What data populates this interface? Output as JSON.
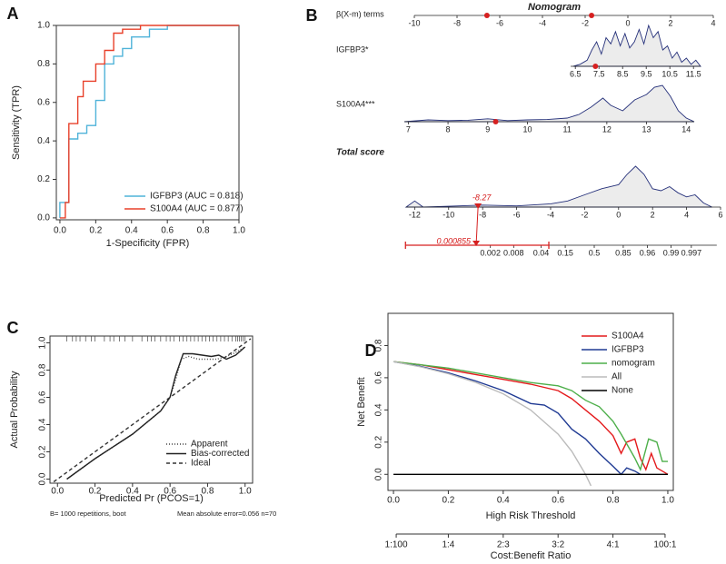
{
  "chart_data": [
    {
      "type": "line",
      "label": "A",
      "xlabel": "1-Specificity (FPR)",
      "ylabel": "Sensitivity (TPR)",
      "xlim": [
        -0.02,
        1.0
      ],
      "ylim": [
        -0.01,
        1.0
      ],
      "xticks": [
        {
          "value": 0,
          "label": "0.0"
        },
        0.2,
        0.4,
        0.6,
        0.8,
        {
          "value": 1,
          "label": "1.0"
        }
      ],
      "yticks": [
        {
          "value": 0,
          "label": "0.0"
        },
        0.2,
        0.4,
        0.6,
        0.8,
        {
          "value": 1,
          "label": "1.0"
        }
      ],
      "legend": "lower right",
      "series": [
        {
          "name": "IGFBP3 (AUC = 0.818)",
          "color": "#4fb3d9",
          "x": [
            0,
            0,
            0.05,
            0.05,
            0.1,
            0.1,
            0.15,
            0.15,
            0.2,
            0.2,
            0.25,
            0.25,
            0.3,
            0.3,
            0.35,
            0.35,
            0.4,
            0.4,
            0.5,
            0.5,
            0.6,
            0.6,
            1
          ],
          "values": [
            0,
            0.08,
            0.08,
            0.41,
            0.41,
            0.44,
            0.44,
            0.48,
            0.48,
            0.61,
            0.61,
            0.8,
            0.8,
            0.84,
            0.84,
            0.88,
            0.88,
            0.94,
            0.94,
            0.98,
            0.98,
            1,
            1
          ]
        },
        {
          "name": "S100A4 (AUC = 0.877)",
          "color": "#e8402a",
          "x": [
            0,
            0.03,
            0.03,
            0.05,
            0.05,
            0.1,
            0.1,
            0.13,
            0.13,
            0.2,
            0.2,
            0.25,
            0.25,
            0.3,
            0.3,
            0.35,
            0.35,
            0.45,
            0.45,
            1
          ],
          "values": [
            0,
            0,
            0.08,
            0.08,
            0.49,
            0.49,
            0.63,
            0.63,
            0.71,
            0.71,
            0.8,
            0.8,
            0.87,
            0.87,
            0.96,
            0.96,
            0.98,
            0.98,
            1,
            1
          ]
        }
      ]
    },
    {
      "type": "nomogram",
      "label": "B",
      "title": "Nomogram",
      "color": "#d62020",
      "line_color": "#25307a",
      "points_axis": {
        "name": "β(X-m) terms",
        "lim": [
          -10,
          4
        ],
        "ticks": [
          -10,
          -8,
          -6,
          -4,
          -2,
          0,
          2,
          4
        ],
        "marks": [
          -6.6,
          -1.7
        ]
      },
      "variables": [
        {
          "name": "IGFBP3*",
          "lim": [
            6.3,
            11.8
          ],
          "ticks": [
            6.5,
            7.5,
            8.5,
            9.5,
            10.5,
            11.5
          ],
          "value": 7.35,
          "density_x": [
            6.4,
            6.7,
            7.0,
            7.2,
            7.4,
            7.6,
            7.8,
            8.0,
            8.2,
            8.4,
            8.6,
            8.8,
            9.0,
            9.2,
            9.4,
            9.6,
            9.8,
            10.0,
            10.2,
            10.4,
            10.6,
            10.8,
            11.0,
            11.2,
            11.4,
            11.6,
            11.8
          ],
          "density": [
            0,
            0.05,
            0.15,
            0.4,
            0.6,
            0.3,
            0.7,
            0.55,
            0.85,
            0.5,
            0.8,
            0.45,
            0.6,
            0.9,
            0.55,
            1.0,
            0.7,
            0.85,
            0.4,
            0.5,
            0.2,
            0.35,
            0.1,
            0.2,
            0.05,
            0.15,
            0
          ]
        },
        {
          "name": "S100A4***",
          "lim": [
            6.9,
            14.2
          ],
          "ticks": [
            7,
            8,
            9,
            10,
            11,
            12,
            13,
            14
          ],
          "value": 9.2,
          "density_x": [
            6.9,
            7.5,
            8,
            8.5,
            9,
            9.5,
            10,
            10.5,
            11,
            11.3,
            11.6,
            11.9,
            12.1,
            12.4,
            12.7,
            13,
            13.2,
            13.4,
            13.6,
            13.8,
            14,
            14.2
          ],
          "density": [
            0,
            0.05,
            0.03,
            0.04,
            0.08,
            0.03,
            0.05,
            0.06,
            0.1,
            0.2,
            0.4,
            0.65,
            0.45,
            0.3,
            0.6,
            0.75,
            0.95,
            1.0,
            0.7,
            0.3,
            0.1,
            0
          ]
        }
      ],
      "total": {
        "name": "Total score",
        "lim": [
          -12.5,
          6
        ],
        "ticks": [
          -12,
          -10,
          -8,
          -6,
          -4,
          -2,
          0,
          2,
          4,
          6
        ],
        "value": -8.27,
        "density_x": [
          -12.5,
          -12,
          -11.5,
          -10,
          -8,
          -6,
          -4,
          -3,
          -2,
          -1,
          0,
          0.5,
          1,
          1.5,
          2,
          2.5,
          3,
          3.5,
          4,
          4.5,
          5,
          5.5
        ],
        "density": [
          0,
          0.15,
          0,
          0.02,
          0.05,
          0.03,
          0.08,
          0.15,
          0.3,
          0.45,
          0.55,
          0.8,
          1.0,
          0.8,
          0.45,
          0.4,
          0.5,
          0.35,
          0.25,
          0.3,
          0.1,
          0
        ]
      },
      "probability": {
        "scale": "logit",
        "ticks": [
          0.002,
          0.008,
          0.04,
          0.15,
          0.5,
          0.85,
          0.96,
          0.99,
          0.997
        ],
        "value": 0.000855,
        "ci": [
          1.25e-05,
          0.062
        ]
      }
    },
    {
      "type": "line",
      "label": "C",
      "xlabel": "Predicted Pr (PCOS=1)",
      "ylabel": "Actual Probability",
      "xlim": [
        -0.04,
        1.04
      ],
      "ylim": [
        -0.03,
        1.05
      ],
      "xticks": [
        {
          "value": 0,
          "label": "0.0"
        },
        0.2,
        0.4,
        0.6,
        0.8,
        {
          "value": 1,
          "label": "1.0"
        }
      ],
      "yticks": [
        {
          "value": 0,
          "label": "0.0"
        },
        0.2,
        0.4,
        0.6,
        0.8,
        {
          "value": 1,
          "label": "1.0"
        }
      ],
      "legend": "lower right",
      "series": [
        {
          "name": "Apparent",
          "color": "#444444",
          "dash": "dotted",
          "x": [
            0.05,
            0.2,
            0.4,
            0.55,
            0.6,
            0.63,
            0.66,
            0.7,
            0.75,
            0.8,
            0.85,
            0.9,
            0.95,
            1.0
          ],
          "values": [
            0,
            0.15,
            0.33,
            0.5,
            0.6,
            0.73,
            0.88,
            0.9,
            0.88,
            0.88,
            0.88,
            0.9,
            0.93,
            0.97
          ]
        },
        {
          "name": "Bias-corrected",
          "color": "#222222",
          "dash": "solid",
          "x": [
            0.05,
            0.2,
            0.4,
            0.55,
            0.6,
            0.63,
            0.67,
            0.72,
            0.77,
            0.82,
            0.86,
            0.9,
            0.95,
            1.0
          ],
          "values": [
            0,
            0.15,
            0.33,
            0.5,
            0.6,
            0.76,
            0.92,
            0.92,
            0.91,
            0.9,
            0.91,
            0.88,
            0.91,
            0.97
          ]
        },
        {
          "name": "Ideal",
          "color": "#333333",
          "dash": "dashed",
          "x": [
            -0.02,
            1.03
          ],
          "values": [
            -0.02,
            1.03
          ]
        }
      ],
      "rug": [
        0.05,
        0.08,
        0.1,
        0.12,
        0.15,
        0.18,
        0.2,
        0.25,
        0.28,
        0.3,
        0.33,
        0.36,
        0.4,
        0.45,
        0.48,
        0.5,
        0.52,
        0.55,
        0.58,
        0.6,
        0.62,
        0.65,
        0.67,
        0.69,
        0.71,
        0.73,
        0.75,
        0.77,
        0.79,
        0.81,
        0.83,
        0.85,
        0.87,
        0.89,
        0.91,
        0.93,
        0.95,
        0.96,
        0.97,
        0.98,
        0.99,
        1.0
      ],
      "notes": [
        "B= 1000 repetitions, boot",
        "Mean absolute error=0.056 n=70"
      ]
    },
    {
      "type": "line",
      "label": "D",
      "xlabel": "High Risk Threshold",
      "ylabel": "Net Benefit",
      "xlim": [
        -0.02,
        1.02
      ],
      "ylim": [
        -0.1,
        1.0
      ],
      "xticks": [
        {
          "value": 0,
          "label": "0.0"
        },
        0.2,
        0.4,
        0.6,
        0.8,
        {
          "value": 1,
          "label": "1.0"
        }
      ],
      "yticks": [
        {
          "value": 0,
          "label": "0.0"
        },
        0.2,
        0.4,
        0.6,
        0.8
      ],
      "x2ticks": [
        {
          "value": 0.01,
          "label": "1:100"
        },
        {
          "value": 0.2,
          "label": "1:4"
        },
        {
          "value": 0.4,
          "label": "2:3"
        },
        {
          "value": 0.6,
          "label": "3:2"
        },
        {
          "value": 0.8,
          "label": "4:1"
        },
        {
          "value": 0.99,
          "label": "100:1"
        }
      ],
      "x2label": "Cost:Benefit Ratio",
      "legend": "upper right",
      "series": [
        {
          "name": "S100A4",
          "color": "#e41a1c",
          "x": [
            0,
            0.1,
            0.2,
            0.3,
            0.4,
            0.5,
            0.6,
            0.65,
            0.7,
            0.75,
            0.8,
            0.83,
            0.85,
            0.88,
            0.9,
            0.92,
            0.94,
            0.96,
            0.98,
            1.0
          ],
          "values": [
            0.7,
            0.68,
            0.65,
            0.62,
            0.59,
            0.56,
            0.52,
            0.47,
            0.4,
            0.33,
            0.24,
            0.13,
            0.2,
            0.22,
            0.1,
            0.03,
            0.13,
            0.04,
            0.02,
            0
          ]
        },
        {
          "name": "IGFBP3",
          "color": "#1f3a93",
          "x": [
            0,
            0.1,
            0.2,
            0.3,
            0.4,
            0.5,
            0.55,
            0.6,
            0.65,
            0.7,
            0.75,
            0.8,
            0.83,
            0.85,
            0.88,
            0.9
          ],
          "values": [
            0.7,
            0.67,
            0.63,
            0.58,
            0.52,
            0.44,
            0.43,
            0.38,
            0.28,
            0.22,
            0.13,
            0.05,
            0,
            0.04,
            0.02,
            0
          ]
        },
        {
          "name": "nomogram",
          "color": "#4daf4a",
          "x": [
            0,
            0.1,
            0.2,
            0.3,
            0.4,
            0.5,
            0.6,
            0.65,
            0.7,
            0.75,
            0.8,
            0.83,
            0.86,
            0.88,
            0.9,
            0.93,
            0.96,
            0.98,
            1.0
          ],
          "values": [
            0.7,
            0.68,
            0.66,
            0.63,
            0.6,
            0.57,
            0.55,
            0.52,
            0.46,
            0.42,
            0.33,
            0.25,
            0.16,
            0.1,
            0.03,
            0.22,
            0.2,
            0.08,
            0.08
          ]
        },
        {
          "name": "All",
          "color": "#bbbbbb",
          "x": [
            0,
            0.1,
            0.2,
            0.3,
            0.4,
            0.5,
            0.6,
            0.65,
            0.7,
            0.72
          ],
          "values": [
            0.7,
            0.667,
            0.625,
            0.571,
            0.5,
            0.4,
            0.25,
            0.143,
            0,
            -0.071
          ]
        },
        {
          "name": "None",
          "color": "#000000",
          "x": [
            0,
            1
          ],
          "values": [
            0,
            0
          ]
        }
      ]
    }
  ]
}
